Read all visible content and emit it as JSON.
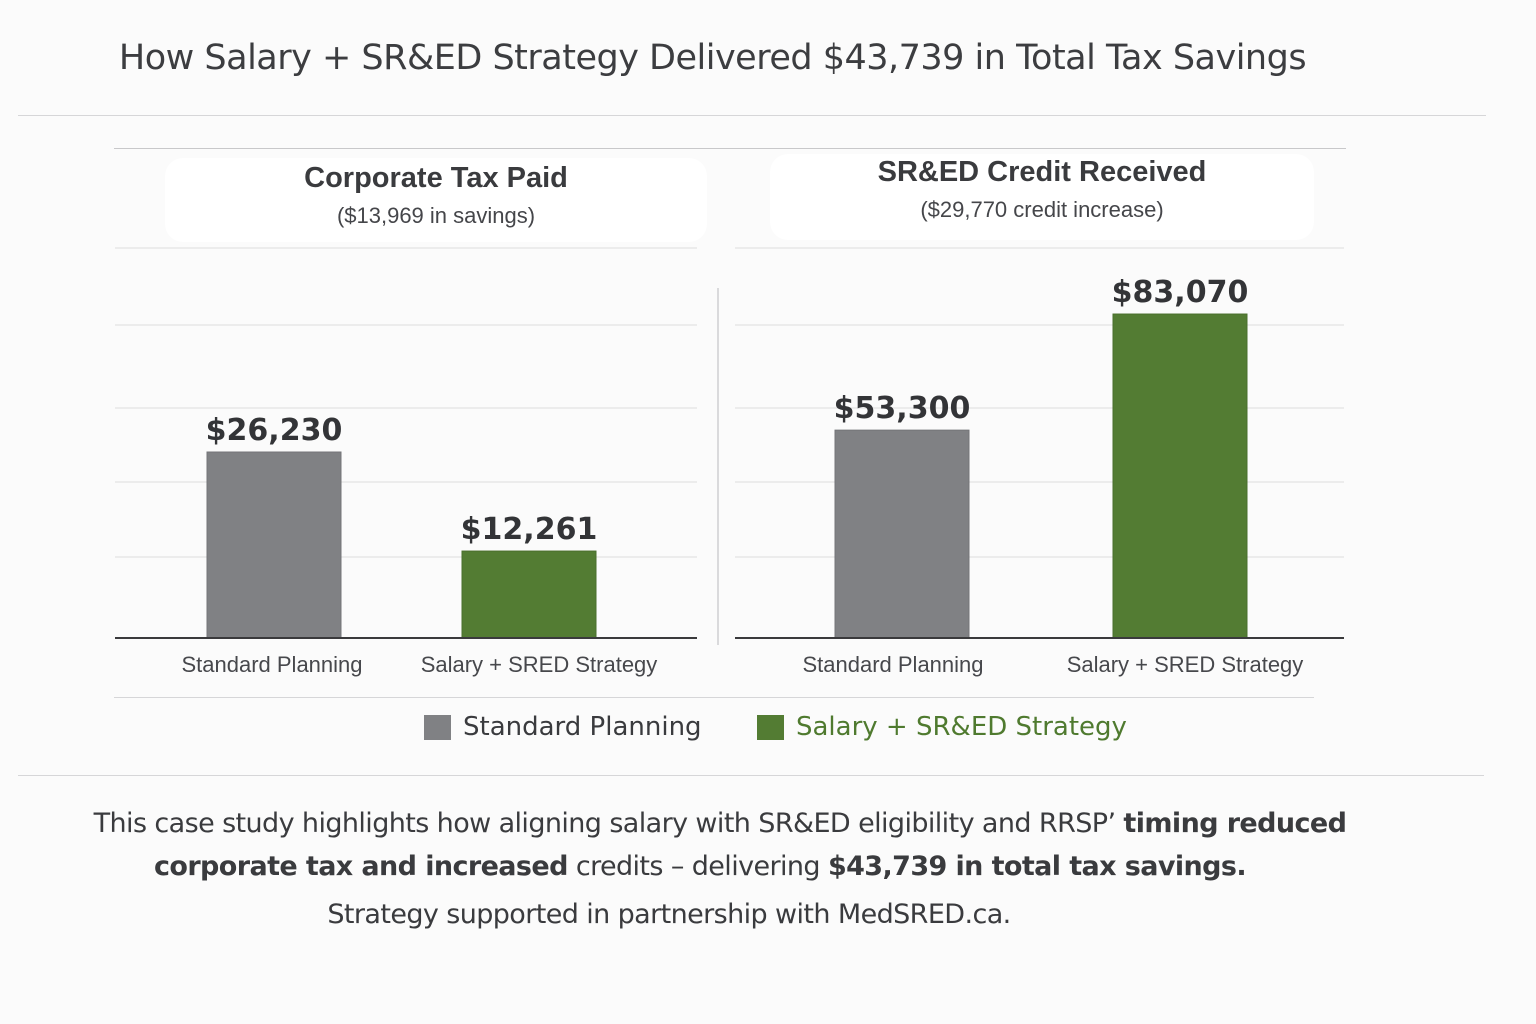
{
  "title": "How Salary + SR&ED Strategy Delivered $43,739 in Total Tax Savings",
  "colors": {
    "standard": "#808184",
    "strategy": "#537c33",
    "legend_strategy_text": "#4f7a2f"
  },
  "chart_data": [
    {
      "type": "bar",
      "title": "Corporate Tax Paid",
      "subtitle": "($13,969 in savings)",
      "categories": [
        "Standard Planning",
        "Salary + SRED Strategy"
      ],
      "values": [
        26230,
        12261
      ],
      "data_labels": [
        "$26,230",
        "$12,261"
      ],
      "grid": true
    },
    {
      "type": "bar",
      "title": "SR&ED Credit Received",
      "subtitle": "($29,770 credit increase)",
      "categories": [
        "Standard Planning",
        "Salary + SRED Strategy"
      ],
      "values": [
        53300,
        83070
      ],
      "data_labels": [
        "$53,300",
        "$83,070"
      ],
      "grid": true
    }
  ],
  "legend": {
    "position": "bottom",
    "items": [
      {
        "label": "Standard Planning",
        "color": "#808184"
      },
      {
        "label": "Salary + SR&ED Strategy",
        "color": "#537c33"
      }
    ]
  },
  "footer": {
    "line1_regular": "This case study highlights how aligning salary with SR&ED eligibility and RRSP’ ",
    "line1_bold": "timing reduced",
    "line2_bold_a": "corporate tax and increased",
    "line2_regular": " credits – delivering ",
    "line2_bold_b": "$43,739 in total tax savings.",
    "line3": "Strategy supported in partnership with MedSRED.ca."
  }
}
